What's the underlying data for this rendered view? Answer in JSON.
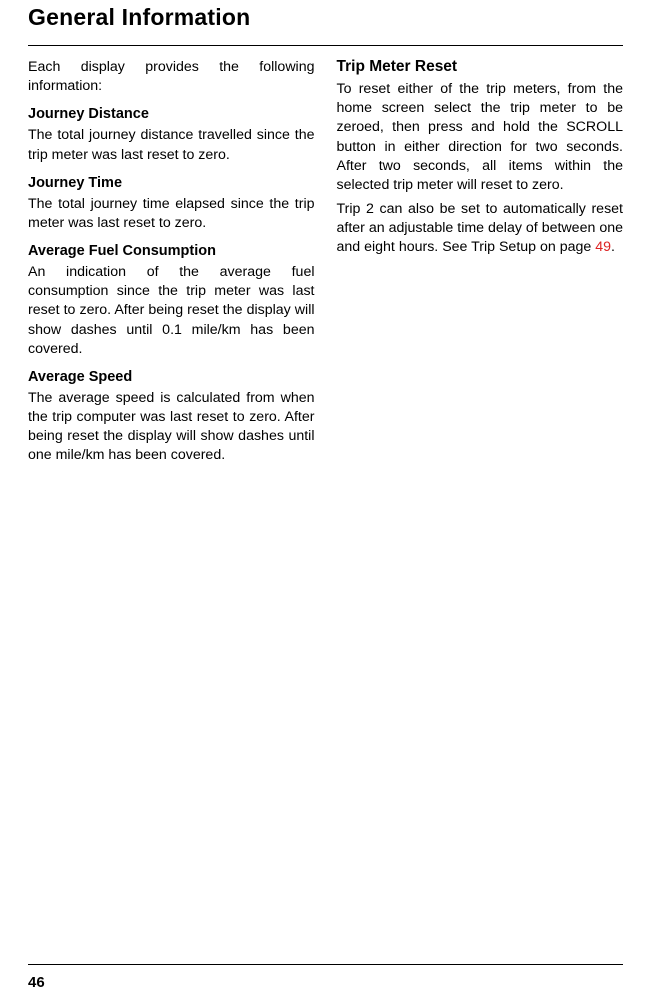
{
  "page": {
    "title": "General Information",
    "number": "46"
  },
  "left": {
    "intro": "Each display provides the following information:",
    "s1": {
      "head": "Journey Distance",
      "body": "The total journey distance travelled since the trip meter was last reset to zero."
    },
    "s2": {
      "head": "Journey Time",
      "body": "The total journey time elapsed since the trip meter was last reset to zero."
    },
    "s3": {
      "head": "Average Fuel Consumption",
      "body": "An indication of the average fuel consumption since the trip meter was last reset to zero. After being reset the display will show dashes until 0.1 mile/km has been covered."
    },
    "s4": {
      "head": "Average Speed",
      "body": "The average speed is calculated from when the trip computer was last reset to zero. After being reset the display will show dashes until one mile/km has been covered."
    }
  },
  "right": {
    "head": "Trip Meter Reset",
    "p1": "To reset either of the trip meters, from the home screen select the trip meter to be zeroed, then press and hold the SCROLL button in either direction for two seconds. After two seconds, all items within the selected trip meter will reset to zero.",
    "p2a": "Trip 2 can also be set to automatically reset after an adjustable time delay of between one and eight hours. See Trip Setup on page ",
    "p2ref": "49",
    "p2b": "."
  },
  "colors": {
    "text": "#000000",
    "bg": "#ffffff",
    "ref": "#d22"
  }
}
